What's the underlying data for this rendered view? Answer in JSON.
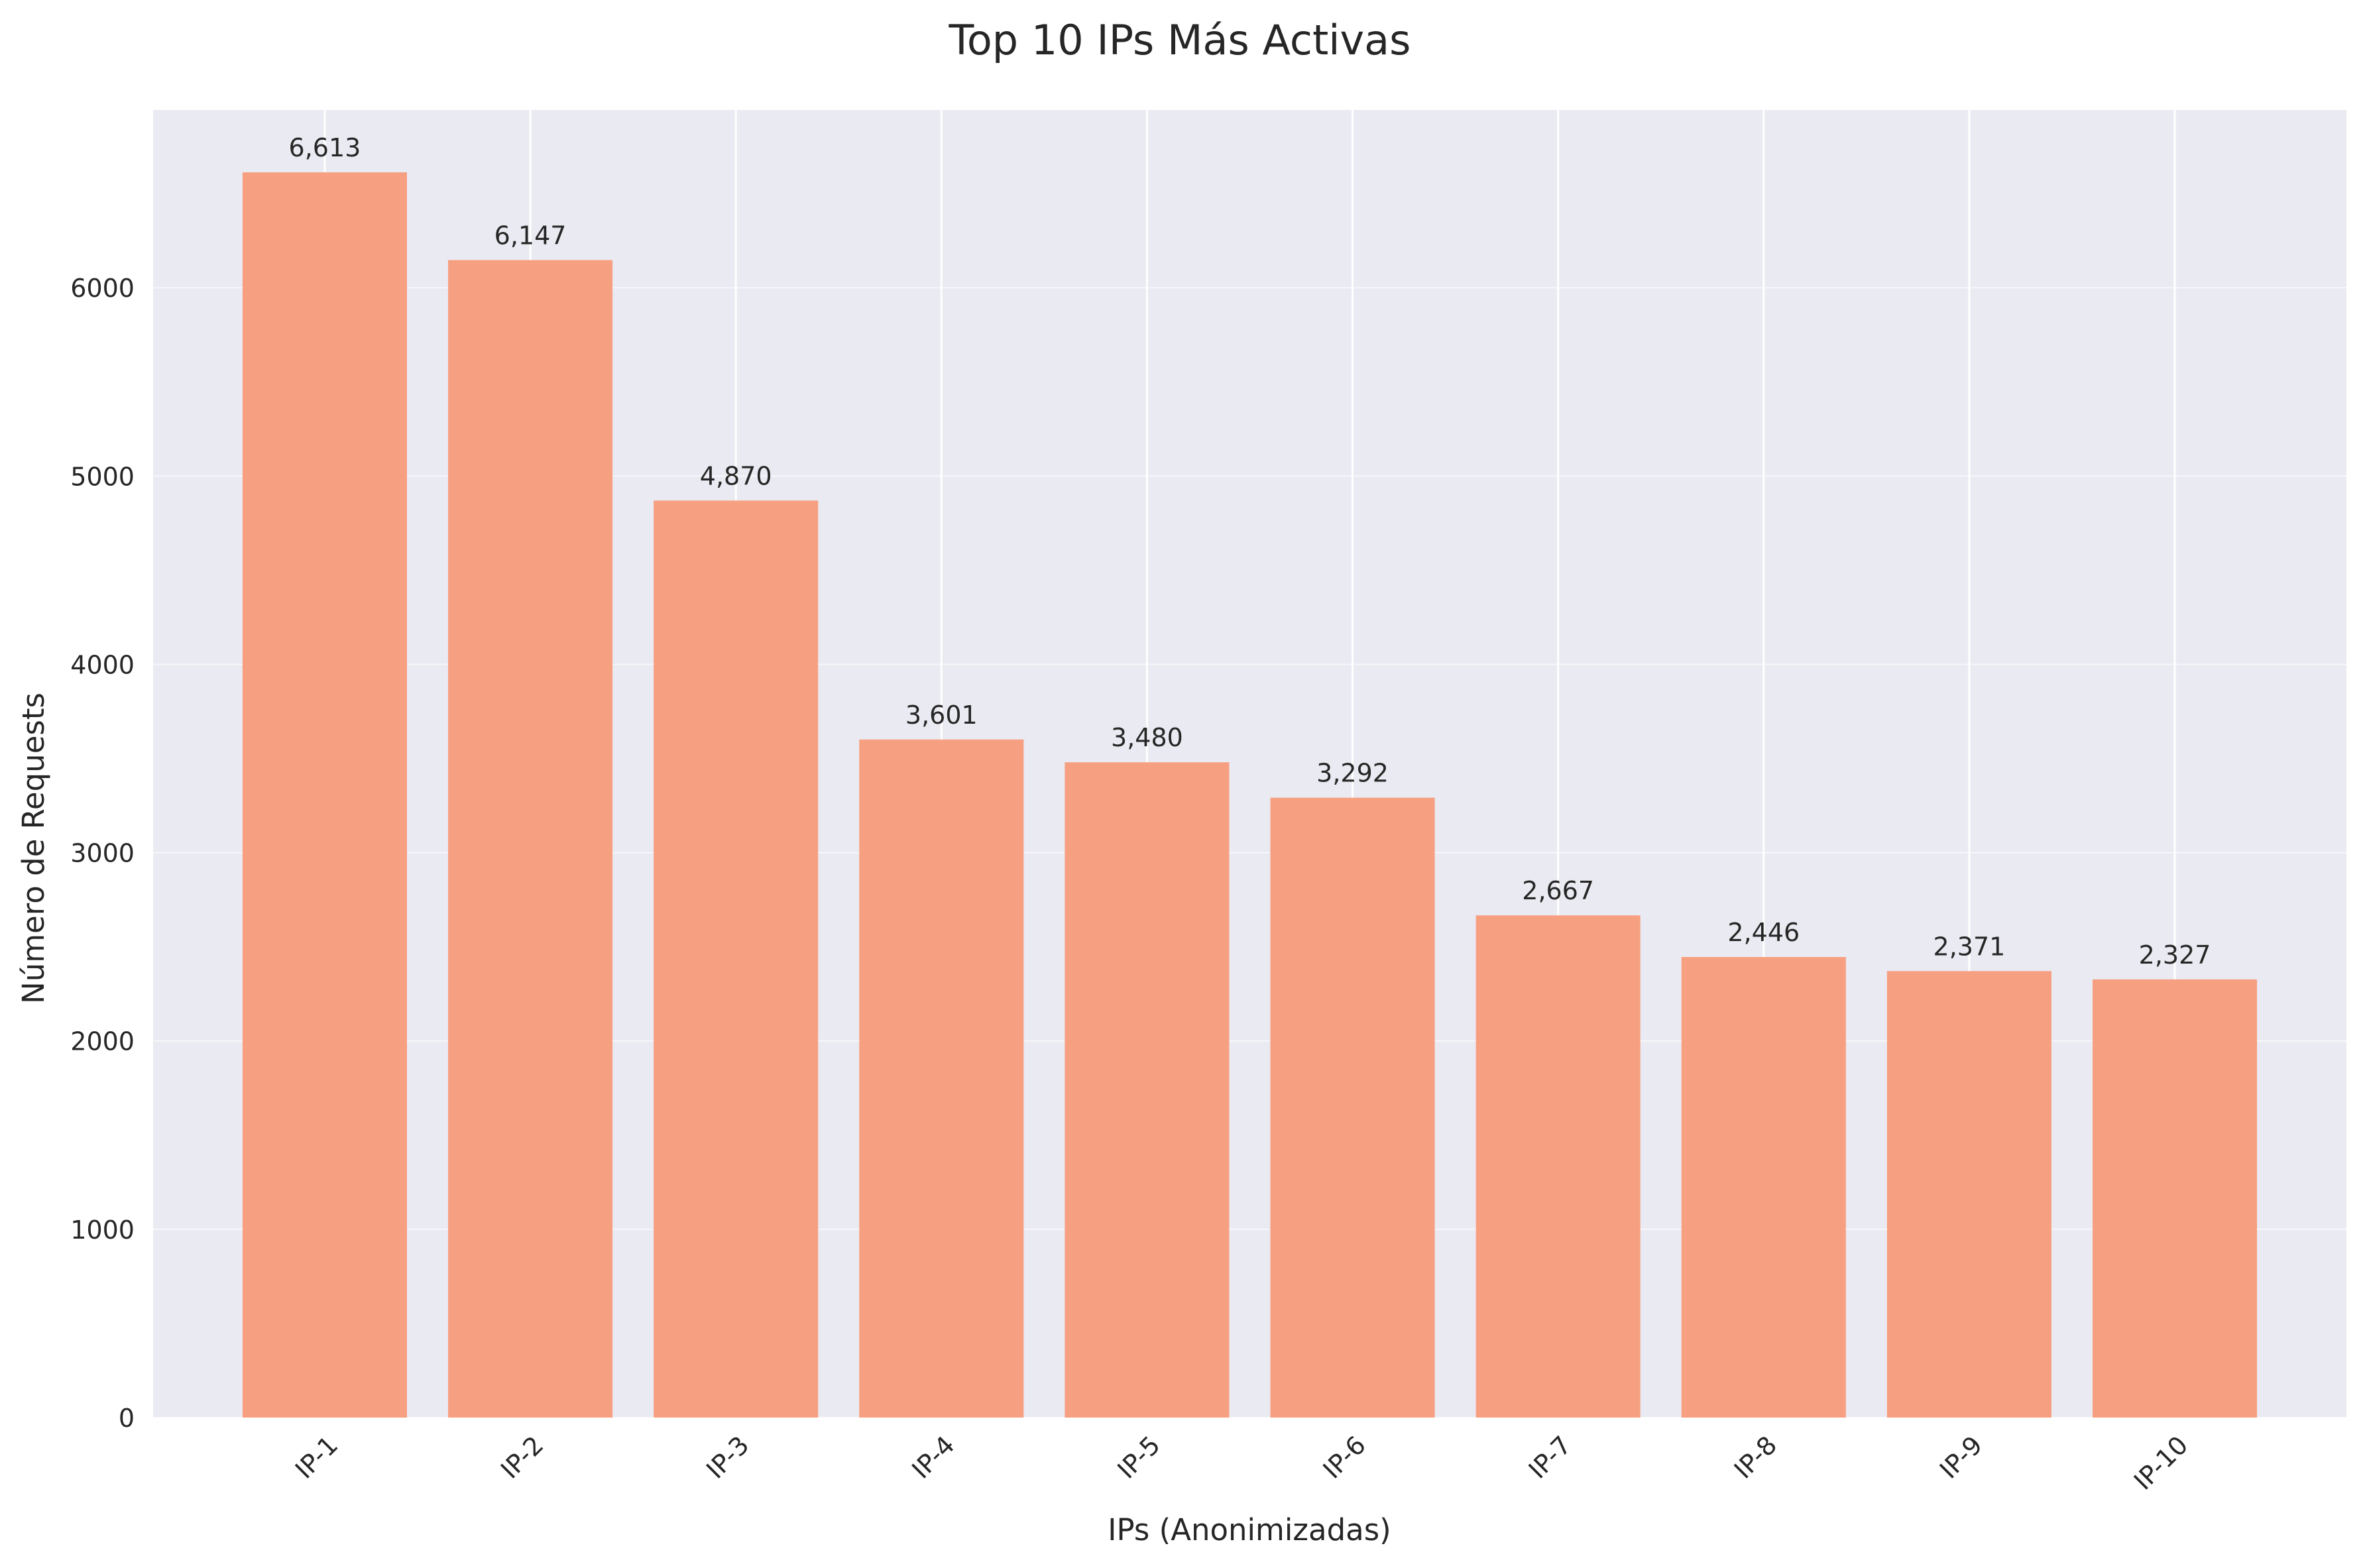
{
  "chart_data": {
    "type": "bar",
    "title": "Top 10 IPs Más Activas",
    "xlabel": "IPs (Anonimizadas)",
    "ylabel": "Número de Requests",
    "categories": [
      "IP-1",
      "IP-2",
      "IP-3",
      "IP-4",
      "IP-5",
      "IP-6",
      "IP-7",
      "IP-8",
      "IP-9",
      "IP-10"
    ],
    "values": [
      6613,
      6147,
      4870,
      3601,
      3480,
      3292,
      2667,
      2446,
      2371,
      2327
    ],
    "value_labels": [
      "6,613",
      "6,147",
      "4,870",
      "3,601",
      "3,480",
      "3,292",
      "2,667",
      "2,446",
      "2,371",
      "2,327"
    ],
    "y_ticks": [
      0,
      1000,
      2000,
      3000,
      4000,
      5000,
      6000
    ],
    "ylim": [
      0,
      6944
    ],
    "grid": true,
    "x_tick_rotation": "45 degrees",
    "colors": {
      "bar": "#f7a081",
      "background": "#eaeaf2",
      "grid": "#ffffff"
    }
  }
}
